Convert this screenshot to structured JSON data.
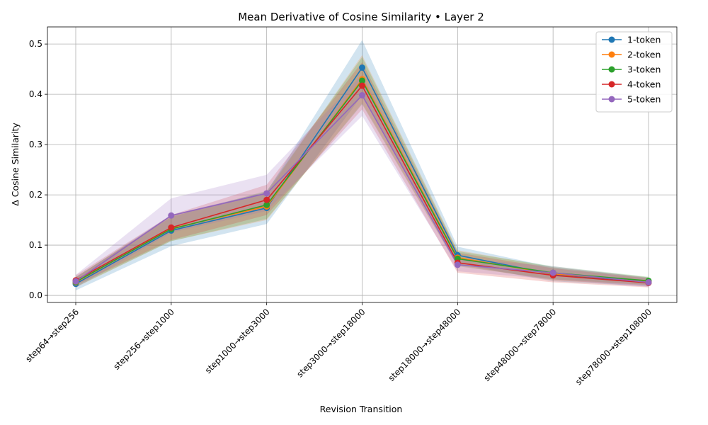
{
  "chart_data": {
    "type": "line",
    "title": "Mean Derivative of Cosine Similarity • Layer 2",
    "xlabel": "Revision Transition",
    "ylabel": "Δ Cosine Similarity",
    "categories": [
      "step64→step256",
      "step256→step1000",
      "step1000→step3000",
      "step3000→step18000",
      "step18000→step48000",
      "step48000→step78000",
      "step78000→step108000"
    ],
    "ylim": [
      -0.014,
      0.534
    ],
    "yticks": [
      0.0,
      0.1,
      0.2,
      0.3,
      0.4,
      0.5
    ],
    "ytick_labels": [
      "0.0",
      "0.1",
      "0.2",
      "0.3",
      "0.4",
      "0.5"
    ],
    "grid": true,
    "legend_position": "top-right",
    "series": [
      {
        "name": "1-token",
        "color": "#1f77b4",
        "values": [
          0.023,
          0.129,
          0.174,
          0.453,
          0.08,
          0.042,
          0.027
        ],
        "lower": [
          0.01,
          0.098,
          0.142,
          0.398,
          0.063,
          0.028,
          0.018
        ],
        "upper": [
          0.036,
          0.16,
          0.206,
          0.508,
          0.097,
          0.056,
          0.036
        ]
      },
      {
        "name": "2-token",
        "color": "#ff7f0e",
        "values": [
          0.026,
          0.133,
          0.177,
          0.43,
          0.075,
          0.043,
          0.028
        ],
        "lower": [
          0.016,
          0.108,
          0.15,
          0.382,
          0.06,
          0.03,
          0.02
        ],
        "upper": [
          0.036,
          0.158,
          0.204,
          0.478,
          0.09,
          0.056,
          0.036
        ]
      },
      {
        "name": "3-token",
        "color": "#2ca02c",
        "values": [
          0.027,
          0.132,
          0.18,
          0.427,
          0.073,
          0.045,
          0.029
        ],
        "lower": [
          0.017,
          0.108,
          0.152,
          0.38,
          0.058,
          0.032,
          0.021
        ],
        "upper": [
          0.037,
          0.156,
          0.208,
          0.474,
          0.088,
          0.058,
          0.037
        ]
      },
      {
        "name": "4-token",
        "color": "#d62728",
        "values": [
          0.03,
          0.135,
          0.19,
          0.417,
          0.065,
          0.04,
          0.025
        ],
        "lower": [
          0.02,
          0.11,
          0.16,
          0.37,
          0.045,
          0.026,
          0.016
        ],
        "upper": [
          0.04,
          0.16,
          0.22,
          0.464,
          0.085,
          0.054,
          0.034
        ]
      },
      {
        "name": "5-token",
        "color": "#9467bd",
        "values": [
          0.028,
          0.159,
          0.203,
          0.398,
          0.061,
          0.045,
          0.026
        ],
        "lower": [
          0.015,
          0.125,
          0.168,
          0.357,
          0.048,
          0.032,
          0.017
        ],
        "upper": [
          0.041,
          0.193,
          0.24,
          0.439,
          0.074,
          0.058,
          0.035
        ]
      }
    ]
  }
}
